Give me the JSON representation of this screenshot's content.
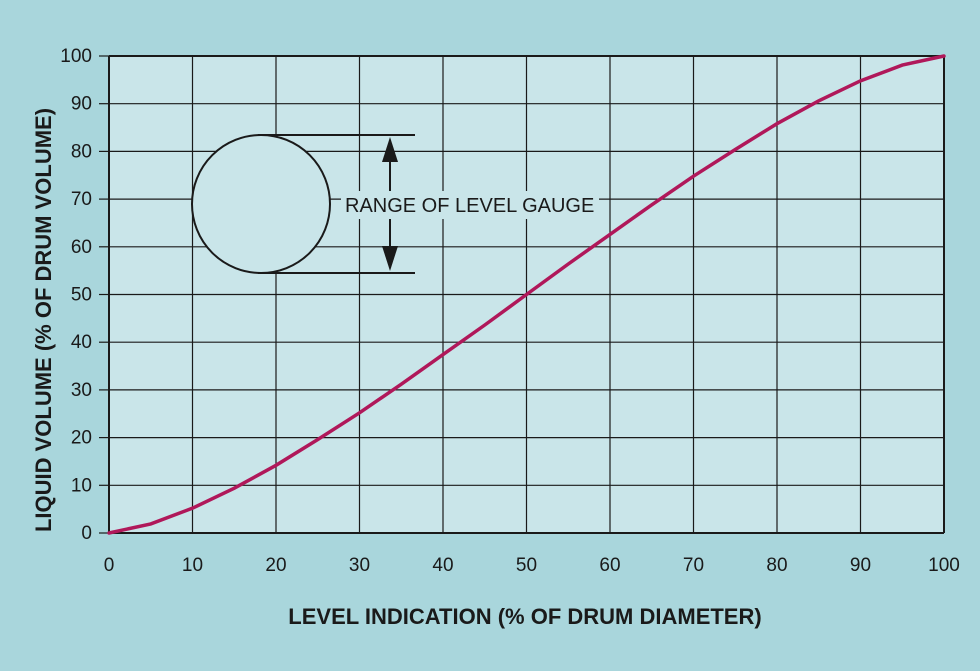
{
  "chart_data": {
    "type": "line",
    "title": "",
    "xlabel": "LEVEL INDICATION (% OF DRUM DIAMETER)",
    "ylabel": "LIQUID VOLUME (% OF DRUM VOLUME)",
    "xlim": [
      0,
      100
    ],
    "ylim": [
      0,
      100
    ],
    "xticks": [
      0,
      10,
      20,
      30,
      40,
      50,
      60,
      70,
      80,
      90,
      100
    ],
    "yticks": [
      0,
      10,
      20,
      30,
      40,
      50,
      60,
      70,
      80,
      90,
      100
    ],
    "grid": true,
    "annotation": "RANGE OF LEVEL GAUGE",
    "series": [
      {
        "color": "#b0185a",
        "x": [
          0,
          5,
          10,
          15,
          20,
          25,
          30,
          35,
          40,
          45,
          50,
          55,
          60,
          65,
          70,
          75,
          80,
          85,
          90,
          95,
          100
        ],
        "values": [
          0,
          1.9,
          5.2,
          9.4,
          14.2,
          19.6,
          25.2,
          31.2,
          37.4,
          43.6,
          50,
          56.4,
          62.6,
          68.8,
          74.8,
          80.4,
          85.8,
          90.6,
          94.8,
          98.1,
          100
        ]
      }
    ]
  },
  "colors": {
    "background": "#a9d6dc",
    "plot_area": "#c9e5e9",
    "grid": "#1a1a1a",
    "curve": "#b0185a"
  }
}
